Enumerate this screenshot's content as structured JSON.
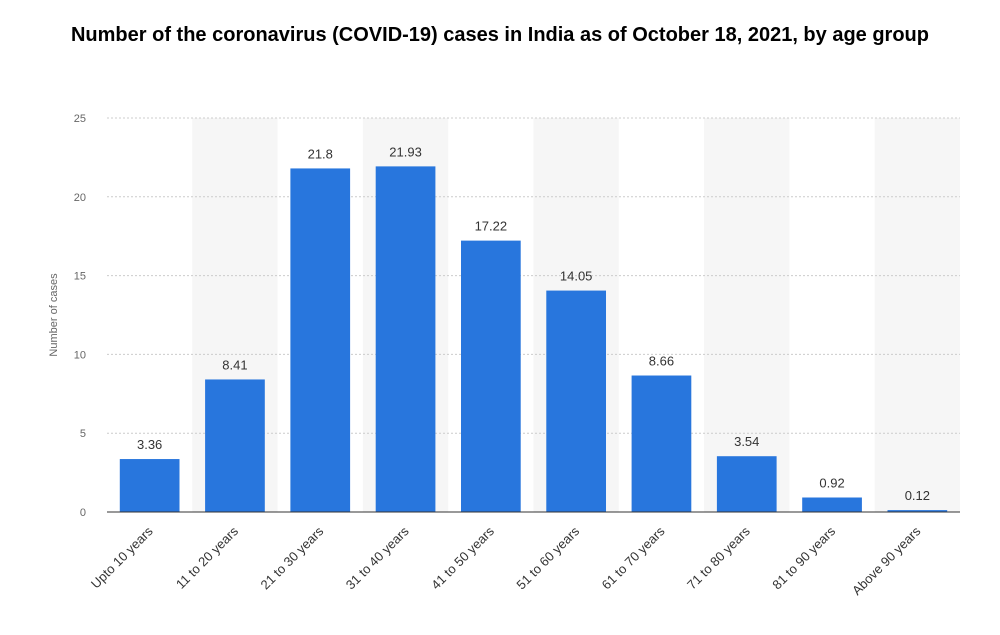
{
  "chart_data": {
    "type": "bar",
    "title": "Number of the coronavirus (COVID-19) cases in India as of October 18, 2021, by age group",
    "xlabel": "",
    "ylabel": "Number of cases",
    "ylim": [
      0,
      25
    ],
    "yticks": [
      "0",
      "5",
      "10",
      "15",
      "20",
      "25"
    ],
    "categories": [
      "Upto 10 years",
      "11 to 20 years",
      "21 to 30 years",
      "31 to 40 years",
      "41 to 50 years",
      "51 to 60 years",
      "61 to 70 years",
      "71 to 80 years",
      "81 to 90 years",
      "Above 90 years"
    ],
    "values": [
      3.36,
      8.41,
      21.8,
      21.93,
      17.22,
      14.05,
      8.66,
      3.54,
      0.92,
      0.12
    ],
    "data_labels": [
      "3.36",
      "8.41",
      "21.8",
      "21.93",
      "17.22",
      "14.05",
      "8.66",
      "3.54",
      "0.92",
      "0.12"
    ],
    "bar_color": "#2876dd",
    "band_color": "#f6f6f6",
    "grid": true,
    "legend": "none"
  }
}
